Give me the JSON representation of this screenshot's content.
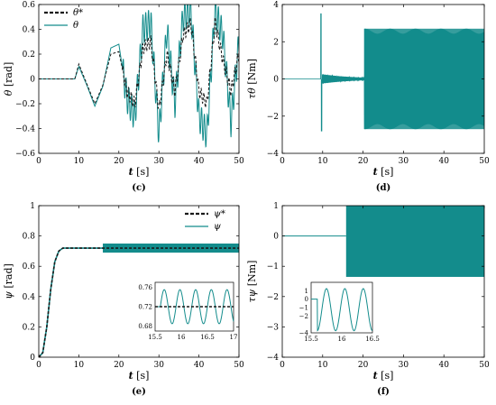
{
  "colors": {
    "teal": "#138c8c",
    "reference": "#1a1a1a",
    "axis": "#000000"
  },
  "chart_data": [
    {
      "id": "c",
      "caption": "(c)",
      "type": "line",
      "xlabel": "t [s]",
      "ylabel": "θ [rad]",
      "xlim": [
        0,
        50
      ],
      "ylim": [
        -0.6,
        0.6
      ],
      "xticks": [
        0,
        10,
        20,
        30,
        40,
        50
      ],
      "yticks": [
        -0.6,
        -0.4,
        -0.2,
        0,
        0.2,
        0.4,
        0.6
      ],
      "ytick_labels": [
        "−0.6",
        "−0.4",
        "−0.2",
        "0",
        "0.2",
        "0.4",
        "0.6"
      ],
      "legend": [
        "θ*",
        "θ"
      ],
      "legend_position": "top-left",
      "series": [
        {
          "name": "θ*",
          "style": "dashed",
          "x": [
            0,
            9,
            10,
            12,
            14,
            16,
            18,
            20,
            22,
            24,
            26,
            28,
            30,
            32,
            34,
            36,
            38,
            40,
            42,
            44,
            46,
            48,
            50
          ],
          "y": [
            0,
            0,
            0.12,
            -0.04,
            -0.2,
            -0.05,
            0.2,
            0.22,
            -0.1,
            -0.2,
            0.25,
            0.3,
            -0.25,
            0.2,
            -0.1,
            0.35,
            0.45,
            -0.1,
            -0.2,
            0.45,
            0.15,
            -0.1,
            0.2
          ]
        },
        {
          "name": "θ",
          "style": "solid",
          "x": [
            0,
            9,
            10,
            12,
            14,
            16,
            18,
            20,
            22,
            24,
            26,
            28,
            30,
            32,
            34,
            36,
            38,
            40,
            42,
            44,
            46,
            48,
            50
          ],
          "y": [
            0,
            0,
            0.1,
            -0.05,
            -0.22,
            -0.06,
            0.25,
            0.28,
            -0.15,
            -0.3,
            0.4,
            0.45,
            -0.45,
            0.4,
            -0.2,
            0.5,
            0.55,
            -0.3,
            -0.45,
            0.55,
            0.35,
            -0.35,
            0.3
          ]
        }
      ]
    },
    {
      "id": "d",
      "caption": "(d)",
      "type": "line",
      "xlabel": "t [s]",
      "ylabel": "τθ [Nm]",
      "xlim": [
        0,
        50
      ],
      "ylim": [
        -4,
        4
      ],
      "xticks": [
        0,
        10,
        20,
        30,
        40,
        50
      ],
      "yticks": [
        -4,
        -2,
        0,
        2,
        4
      ],
      "ytick_labels": [
        "−4",
        "−2",
        "0",
        "2",
        "4"
      ],
      "series": [
        {
          "name": "τθ",
          "style": "solid",
          "events": [
            {
              "t_start": 0,
              "t_end": 9,
              "amplitude": 0
            },
            {
              "t_start": 9.5,
              "t_end": 9.8,
              "amplitude": 3.5,
              "note": "spike peaking near 3.5 Nm and -2.8 Nm"
            },
            {
              "t_start": 10,
              "t_end": 20,
              "amplitude": 0.25,
              "note": "small decaying oscillation"
            },
            {
              "t_start": 20.5,
              "t_end": 50,
              "amplitude": 2.7,
              "note": "dense high-frequency oscillation"
            }
          ]
        }
      ]
    },
    {
      "id": "e",
      "caption": "(e)",
      "type": "line",
      "xlabel": "t [s]",
      "ylabel": "ψ [rad]",
      "xlim": [
        0,
        50
      ],
      "ylim": [
        0,
        1
      ],
      "xticks": [
        0,
        10,
        20,
        30,
        40,
        50
      ],
      "yticks": [
        0,
        0.2,
        0.4,
        0.6,
        0.8,
        1
      ],
      "ytick_labels": [
        "0",
        "0.2",
        "0.4",
        "0.6",
        "0.8",
        "1"
      ],
      "legend": [
        "ψ*",
        "ψ"
      ],
      "legend_position": "top-right",
      "series": [
        {
          "name": "ψ*",
          "style": "dashed",
          "x": [
            0,
            1,
            2,
            3,
            4,
            5,
            6,
            7,
            50
          ],
          "y": [
            0,
            0.03,
            0.2,
            0.45,
            0.63,
            0.7,
            0.72,
            0.72,
            0.72
          ]
        },
        {
          "name": "ψ",
          "style": "solid",
          "x": [
            0,
            1,
            2,
            3,
            4,
            5,
            6,
            7,
            16,
            50
          ],
          "y": [
            0,
            0.03,
            0.2,
            0.45,
            0.63,
            0.7,
            0.72,
            0.72,
            0.72,
            0.72
          ],
          "oscillation": {
            "t_start": 16,
            "amplitude": 0.03
          }
        }
      ],
      "inset": {
        "xlim": [
          15.5,
          17
        ],
        "ylim": [
          0.67,
          0.77
        ],
        "xticks": [
          15.5,
          16,
          16.5,
          17
        ],
        "xtick_labels": [
          "15.5",
          "16",
          "16.5",
          "17"
        ],
        "yticks": [
          0.68,
          0.72,
          0.76
        ],
        "ytick_labels": [
          "0.68",
          "0.72",
          "0.76"
        ],
        "reference": 0.72,
        "oscillation_period": 0.3,
        "oscillation_amplitude": 0.035,
        "oscillation_start": 15.6
      }
    },
    {
      "id": "f",
      "caption": "(f)",
      "type": "line",
      "xlabel": "t [s]",
      "ylabel": "τψ [Nm]",
      "xlim": [
        0,
        50
      ],
      "ylim": [
        -4,
        1
      ],
      "xticks": [
        0,
        10,
        20,
        30,
        40,
        50
      ],
      "yticks": [
        -4,
        -3,
        -2,
        -1,
        0,
        1
      ],
      "ytick_labels": [
        "−4",
        "−3",
        "−2",
        "−1",
        "0",
        "1"
      ],
      "series": [
        {
          "name": "τψ",
          "style": "solid",
          "events": [
            {
              "t_start": 0,
              "t_end": 15.8,
              "amplitude": 0
            },
            {
              "t_start": 15.8,
              "t_end": 50,
              "amplitude": 1.35,
              "note": "dense oscillation"
            }
          ]
        }
      ],
      "inset": {
        "xlim": [
          15.5,
          16.5
        ],
        "ylim": [
          -4,
          2
        ],
        "xticks": [
          15.5,
          16,
          16.5
        ],
        "xtick_labels": [
          "15.5",
          "16",
          "16.5"
        ],
        "yticks": [
          -4,
          -3,
          -2,
          -1,
          0,
          1
        ],
        "ytick_labels": [
          "−4",
          "−3",
          "−2",
          "−1",
          "0",
          "1"
        ],
        "oscillation_start": 15.6,
        "oscillation_period": 0.3,
        "oscillation_center": -1.25,
        "oscillation_amplitude": 2.5
      }
    }
  ]
}
